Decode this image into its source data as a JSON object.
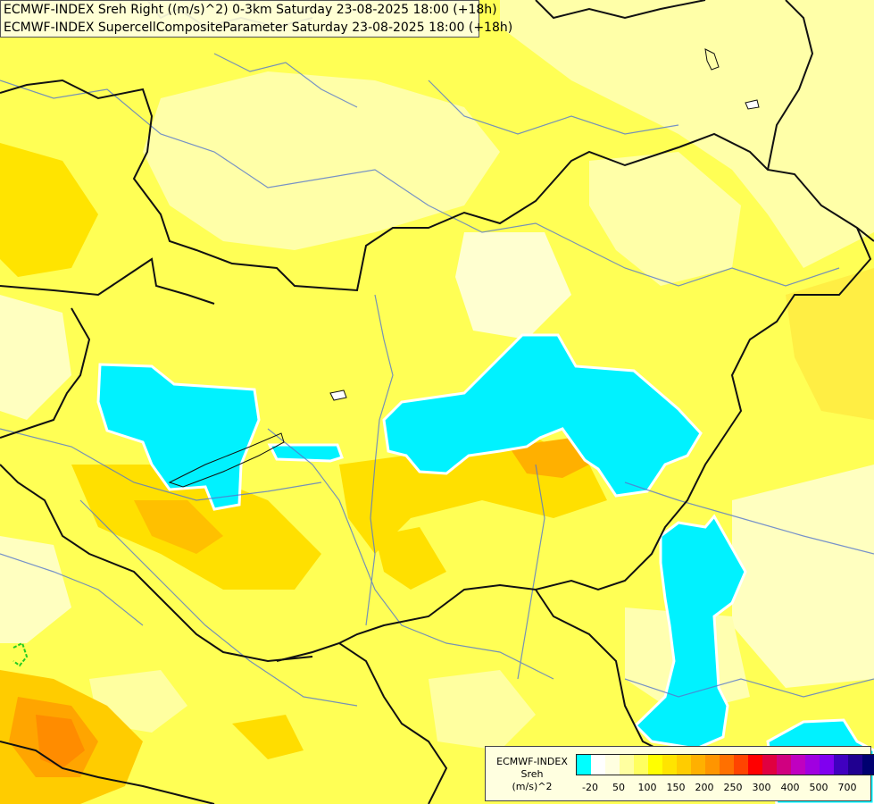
{
  "map": {
    "title_lines": [
      "ECMWF-INDEX Sreh Right ((m/s)^2) 0-3km Saturday 23-08-2025 18:00 (+18h)",
      "ECMWF-INDEX SupercellCompositeParameter Saturday 23-08-2025 18:00 (+18h)"
    ],
    "region_description_hidden": ""
  },
  "legend": {
    "model": "ECMWF-INDEX",
    "parameter": "Sreh",
    "unit": "(m/s)^2",
    "colors": [
      "#00ffff",
      "#ffffff",
      "#ffffe0",
      "#ffffa0",
      "#ffff60",
      "#ffff00",
      "#ffe400",
      "#ffcc00",
      "#ffb000",
      "#ff9500",
      "#ff7000",
      "#ff4400",
      "#ff0000",
      "#e00040",
      "#d00080",
      "#c000c0",
      "#a000e0",
      "#8000f0",
      "#4000c0",
      "#200090",
      "#000070"
    ],
    "ticks": [
      "-20",
      "50",
      "100",
      "150",
      "200",
      "250",
      "300",
      "400",
      "500",
      "700"
    ]
  }
}
